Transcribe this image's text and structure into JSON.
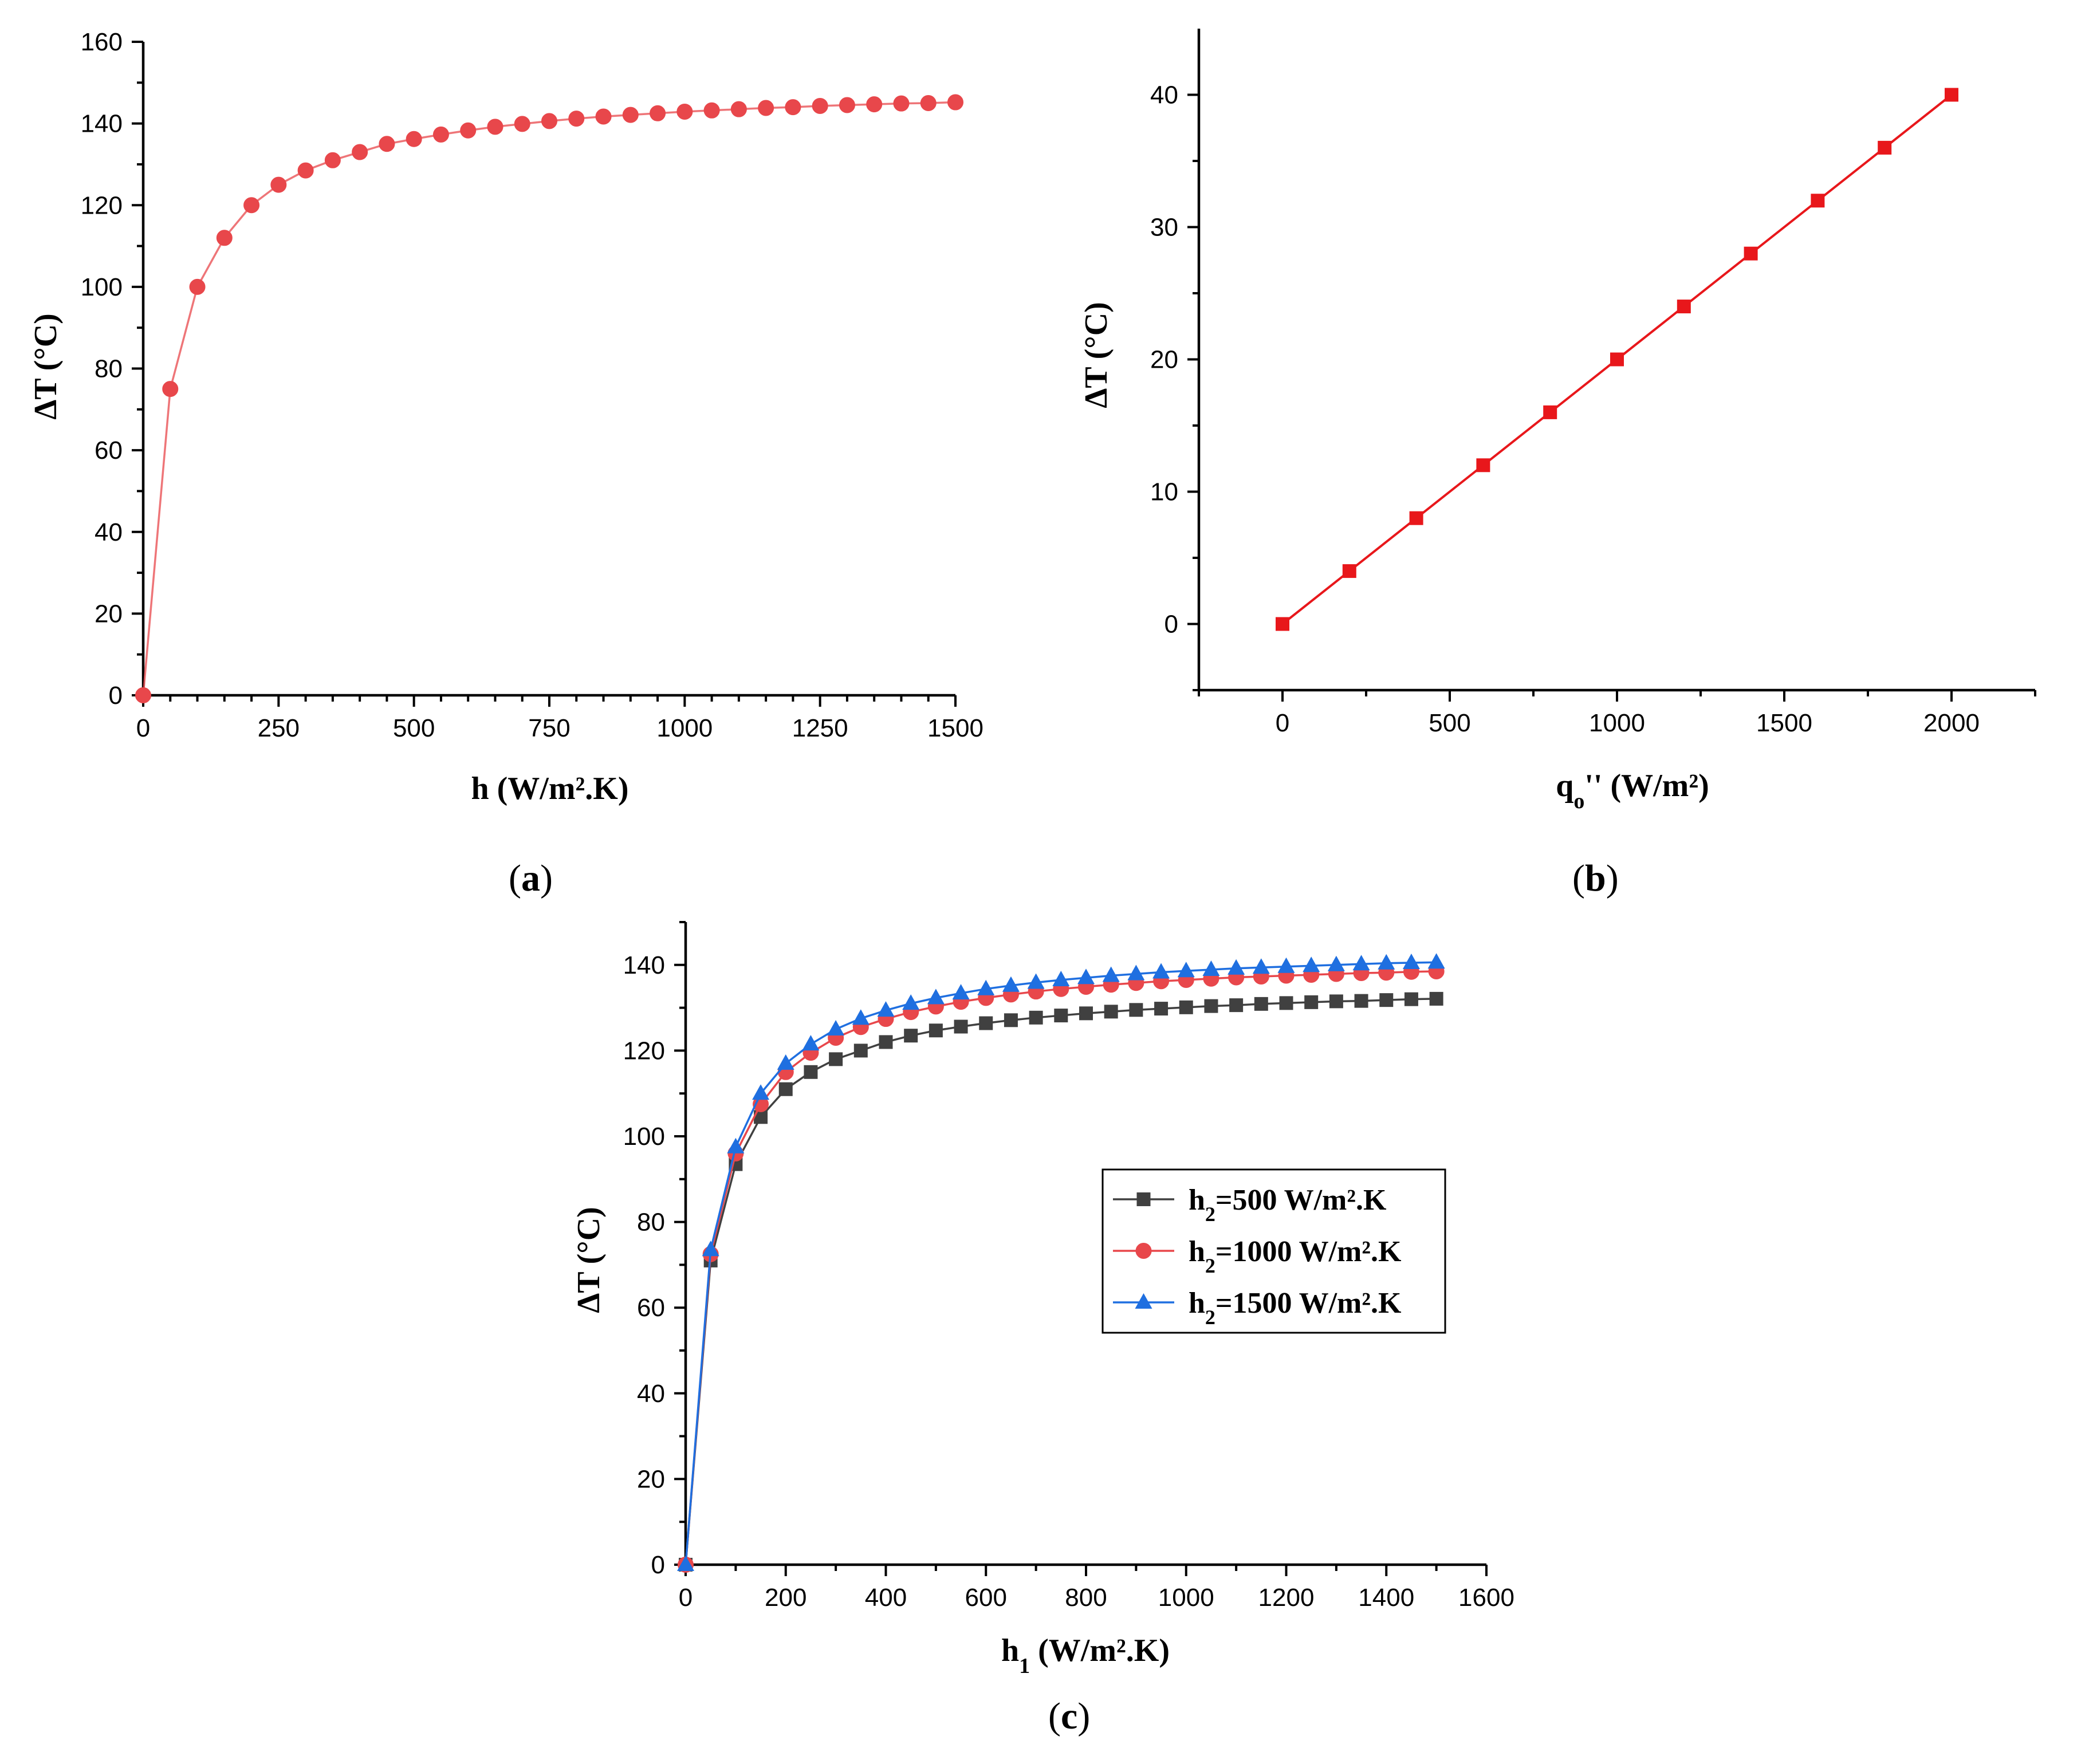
{
  "chart_data": [
    {
      "id": "a",
      "type": "line",
      "caption": "(a)",
      "caption_letter": "a",
      "xlabel": "h (W/m².K)",
      "ylabel": "ΔT (°C)",
      "xlim": [
        0,
        1500
      ],
      "ylim": [
        0,
        160
      ],
      "xticks": [
        0,
        250,
        500,
        750,
        1000,
        1250,
        1500
      ],
      "yticks": [
        0,
        20,
        40,
        60,
        80,
        100,
        120,
        140,
        160
      ],
      "series": [
        {
          "name": "ΔT",
          "color": "#e8474b",
          "marker": "circle",
          "x": [
            0,
            50,
            100,
            150,
            200,
            250,
            300,
            350,
            400,
            450,
            500,
            550,
            600,
            650,
            700,
            750,
            800,
            850,
            900,
            950,
            1000,
            1050,
            1100,
            1150,
            1200,
            1250,
            1300,
            1350,
            1400,
            1450,
            1500
          ],
          "y": [
            0,
            75,
            100,
            112,
            120,
            125,
            128.5,
            131,
            133,
            135,
            136.2,
            137.3,
            138.3,
            139.2,
            139.9,
            140.6,
            141.2,
            141.7,
            142.1,
            142.5,
            142.9,
            143.2,
            143.5,
            143.8,
            144.0,
            144.3,
            144.5,
            144.7,
            144.9,
            145.0,
            145.2
          ]
        }
      ]
    },
    {
      "id": "b",
      "type": "line",
      "caption": "(b)",
      "caption_letter": "b",
      "xlabel": "qo'' (W/m²)",
      "ylabel": "ΔT (°C)",
      "xlim": [
        -250,
        2250
      ],
      "ylim": [
        -5,
        45
      ],
      "xticks": [
        0,
        500,
        1000,
        1500,
        2000
      ],
      "yticks": [
        0,
        10,
        20,
        30,
        40
      ],
      "series": [
        {
          "name": "ΔT",
          "color": "#e8171b",
          "marker": "square",
          "x": [
            0,
            200,
            400,
            600,
            800,
            1000,
            1200,
            1400,
            1600,
            1800,
            2000
          ],
          "y": [
            0,
            4,
            8,
            12,
            16,
            20,
            24,
            28,
            32,
            36,
            40
          ]
        }
      ]
    },
    {
      "id": "c",
      "type": "line",
      "caption": "(c)",
      "caption_letter": "c",
      "xlabel": "h1 (W/m².K)",
      "ylabel": "ΔT (°C)",
      "xlim": [
        0,
        1600
      ],
      "ylim": [
        0,
        150
      ],
      "xticks": [
        0,
        200,
        400,
        600,
        800,
        1000,
        1200,
        1400,
        1600
      ],
      "yticks": [
        0,
        20,
        40,
        60,
        80,
        100,
        120,
        140
      ],
      "legend": "center-right",
      "series": [
        {
          "name": "h2=500 W/m².K",
          "color": "#404040",
          "marker": "square",
          "x": [
            0,
            50,
            100,
            150,
            200,
            250,
            300,
            350,
            400,
            450,
            500,
            550,
            600,
            650,
            700,
            750,
            800,
            850,
            900,
            950,
            1000,
            1050,
            1100,
            1150,
            1200,
            1250,
            1300,
            1350,
            1400,
            1450,
            1500
          ],
          "y": [
            0,
            71,
            93.5,
            104.5,
            111,
            115,
            118,
            120,
            122,
            123.5,
            124.7,
            125.6,
            126.4,
            127.1,
            127.7,
            128.2,
            128.7,
            129.1,
            129.5,
            129.8,
            130.1,
            130.4,
            130.6,
            130.9,
            131.1,
            131.3,
            131.5,
            131.6,
            131.8,
            132.0,
            132.1
          ]
        },
        {
          "name": "h2=1000 W/m².K",
          "color": "#e8474b",
          "marker": "circle",
          "x": [
            0,
            50,
            100,
            150,
            200,
            250,
            300,
            350,
            400,
            450,
            500,
            550,
            600,
            650,
            700,
            750,
            800,
            850,
            900,
            950,
            1000,
            1050,
            1100,
            1150,
            1200,
            1250,
            1300,
            1350,
            1400,
            1450,
            1500
          ],
          "y": [
            0,
            72.5,
            96,
            107.5,
            115,
            119.5,
            123,
            125.5,
            127.4,
            129,
            130.3,
            131.4,
            132.3,
            133.1,
            133.8,
            134.4,
            134.9,
            135.4,
            135.8,
            136.2,
            136.5,
            136.8,
            137.1,
            137.3,
            137.5,
            137.7,
            137.9,
            138.1,
            138.2,
            138.4,
            138.5
          ]
        },
        {
          "name": "h2=1500 W/m².K",
          "color": "#1f6fe0",
          "marker": "triangle",
          "x": [
            0,
            50,
            100,
            150,
            200,
            250,
            300,
            350,
            400,
            450,
            500,
            550,
            600,
            650,
            700,
            750,
            800,
            850,
            900,
            950,
            1000,
            1050,
            1100,
            1150,
            1200,
            1250,
            1300,
            1350,
            1400,
            1450,
            1500
          ],
          "y": [
            0,
            73.5,
            97.5,
            110,
            117,
            121.5,
            125,
            127.5,
            129.4,
            131,
            132.3,
            133.4,
            134.4,
            135.2,
            135.9,
            136.5,
            137.0,
            137.5,
            137.9,
            138.3,
            138.6,
            138.9,
            139.2,
            139.4,
            139.6,
            139.8,
            140.0,
            140.2,
            140.4,
            140.5,
            140.6
          ]
        }
      ]
    }
  ]
}
